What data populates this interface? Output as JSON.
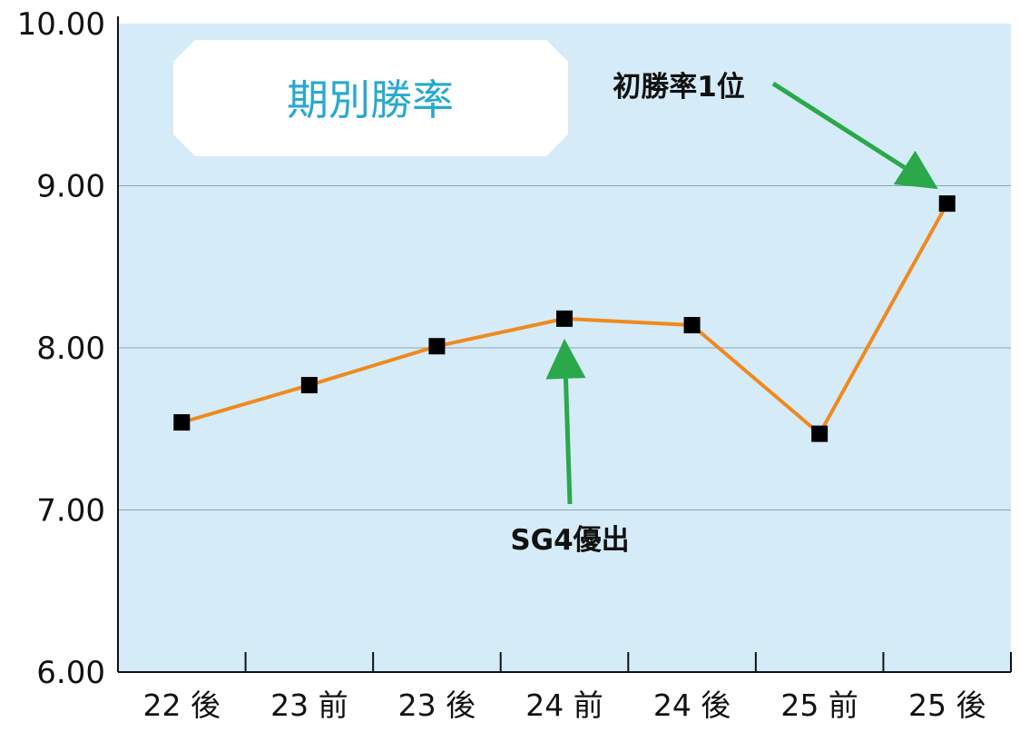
{
  "colors": {
    "plot_bg": "#d5ebf8",
    "line": "#ee8a1e",
    "marker": "#000000",
    "arrow": "#2aa84a",
    "title": "#29a9cf",
    "grid": "#8aa6b8"
  },
  "chart_data": {
    "type": "line",
    "title": "期別勝率",
    "xlabel": "",
    "ylabel": "",
    "ylim": [
      6.0,
      10.0
    ],
    "yticks": [
      "6.00",
      "7.00",
      "8.00",
      "9.00",
      "10.00"
    ],
    "grid": "horizontal",
    "categories": [
      "22 後",
      "23 前",
      "23 後",
      "24 前",
      "24 後",
      "25 前",
      "25 後"
    ],
    "series": [
      {
        "values": [
          7.54,
          7.77,
          8.01,
          8.18,
          8.14,
          7.47,
          8.89
        ]
      }
    ],
    "annotations": [
      {
        "text": "初勝率1位",
        "target_category": "25 後",
        "target_value": 8.89
      },
      {
        "text": "SG4優出",
        "target_category": "24 前",
        "target_value": 8.18
      }
    ]
  }
}
